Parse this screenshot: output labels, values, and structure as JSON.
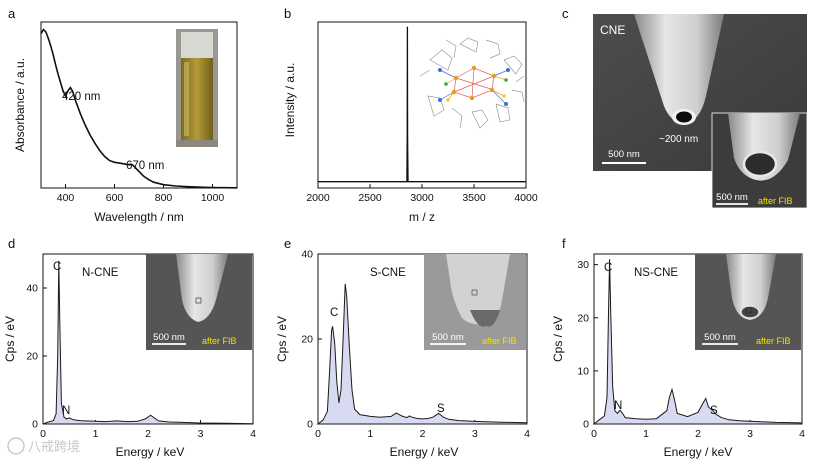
{
  "panel_letters": [
    "a",
    "b",
    "c",
    "d",
    "e",
    "f"
  ],
  "chart_data": [
    {
      "panel": "a",
      "type": "line",
      "xlabel": "Wavelength / nm",
      "ylabel": "Absorbance / a.u.",
      "xlim": [
        300,
        1100
      ],
      "xticks": [
        400,
        600,
        800,
        1000
      ],
      "x": [
        300,
        310,
        320,
        330,
        340,
        350,
        360,
        370,
        380,
        390,
        400,
        410,
        420,
        430,
        440,
        460,
        480,
        500,
        520,
        540,
        560,
        580,
        600,
        620,
        640,
        660,
        670,
        680,
        700,
        720,
        740,
        760,
        800,
        850,
        900,
        950,
        1000,
        1050,
        1100
      ],
      "y": [
        0.93,
        0.955,
        0.94,
        0.9,
        0.855,
        0.8,
        0.74,
        0.685,
        0.635,
        0.585,
        0.555,
        0.585,
        0.605,
        0.58,
        0.53,
        0.45,
        0.38,
        0.32,
        0.27,
        0.225,
        0.19,
        0.165,
        0.155,
        0.15,
        0.145,
        0.14,
        0.142,
        0.13,
        0.1,
        0.07,
        0.05,
        0.035,
        0.02,
        0.012,
        0.008,
        0.005,
        0.003,
        0.002,
        0.001
      ],
      "annotations": [
        "420 nm",
        "670 nm"
      ]
    },
    {
      "panel": "b",
      "type": "line",
      "xlabel": "m / z",
      "ylabel": "Intensity / a.u.",
      "xlim": [
        2000,
        4000
      ],
      "xticks": [
        2000,
        2500,
        3000,
        3500,
        4000
      ],
      "x": [
        2000,
        2855,
        2858,
        2860,
        2862,
        2865,
        4000
      ],
      "y": [
        0.02,
        0.02,
        0.3,
        1.0,
        0.3,
        0.02,
        0.02
      ]
    },
    {
      "panel": "d",
      "type": "area",
      "title": "N-CNE",
      "xlabel": "Energy / keV",
      "ylabel": "Cps / eV",
      "xlim": [
        0,
        4
      ],
      "ylim": [
        0,
        50
      ],
      "xticks": [
        0,
        1,
        2,
        3,
        4
      ],
      "yticks": [
        0,
        20,
        40
      ],
      "x": [
        0,
        0.1,
        0.2,
        0.25,
        0.28,
        0.3,
        0.32,
        0.35,
        0.4,
        0.45,
        0.5,
        0.55,
        0.6,
        0.7,
        0.8,
        1.0,
        1.2,
        1.4,
        1.5,
        1.6,
        1.8,
        1.95,
        2.05,
        2.12,
        2.2,
        2.4,
        2.6,
        2.8,
        3,
        3.5,
        4
      ],
      "y": [
        0,
        0.6,
        1,
        3,
        20,
        48,
        30,
        6,
        2,
        1.5,
        1.8,
        1.4,
        1.2,
        1,
        0.9,
        0.8,
        0.7,
        0.9,
        0.8,
        0.7,
        0.8,
        1.5,
        2.6,
        1.8,
        0.9,
        0.6,
        0.5,
        0.4,
        0.3,
        0.2,
        0.1
      ],
      "peak_labels": [
        "C",
        "N"
      ]
    },
    {
      "panel": "e",
      "type": "area",
      "title": "S-CNE",
      "xlabel": "Energy / keV",
      "ylabel": "Cps / eV",
      "xlim": [
        0,
        4
      ],
      "ylim": [
        0,
        40
      ],
      "xticks": [
        0,
        1,
        2,
        3,
        4
      ],
      "yticks": [
        0,
        20,
        40
      ],
      "x": [
        0,
        0.1,
        0.18,
        0.22,
        0.26,
        0.28,
        0.32,
        0.36,
        0.4,
        0.44,
        0.48,
        0.52,
        0.55,
        0.6,
        0.65,
        0.7,
        0.8,
        1.0,
        1.2,
        1.4,
        1.5,
        1.6,
        1.7,
        1.75,
        1.8,
        1.9,
        2.0,
        2.1,
        2.2,
        2.31,
        2.4,
        2.5,
        2.7,
        3,
        3.5,
        4
      ],
      "y": [
        0,
        1,
        3,
        12,
        22,
        23,
        19,
        10,
        5,
        8,
        20,
        33,
        30,
        18,
        8,
        3.5,
        2.2,
        1.8,
        1.6,
        1.8,
        2.6,
        1.9,
        1.5,
        1.9,
        1.6,
        1.3,
        1.2,
        1.3,
        1.6,
        2.5,
        1.6,
        1.1,
        0.8,
        0.6,
        0.4,
        0.3
      ],
      "peak_labels": [
        "C",
        "S"
      ]
    },
    {
      "panel": "f",
      "type": "area",
      "title": "NS-CNE",
      "xlabel": "Energy / keV",
      "ylabel": "Cps / eV",
      "xlim": [
        0,
        4
      ],
      "ylim": [
        0,
        32
      ],
      "xticks": [
        0,
        1,
        2,
        3,
        4
      ],
      "yticks": [
        0,
        10,
        20,
        30
      ],
      "x": [
        0,
        0.1,
        0.2,
        0.25,
        0.28,
        0.3,
        0.32,
        0.36,
        0.4,
        0.45,
        0.5,
        0.55,
        0.6,
        0.8,
        1.0,
        1.2,
        1.4,
        1.45,
        1.5,
        1.55,
        1.6,
        1.8,
        2.0,
        2.1,
        2.15,
        2.2,
        2.3,
        2.35,
        2.45,
        2.6,
        2.8,
        3,
        3.5,
        4
      ],
      "y": [
        0,
        0.8,
        1.5,
        5,
        22,
        31,
        22,
        7,
        2.5,
        2,
        2.6,
        2,
        1.2,
        1,
        0.9,
        1,
        2.5,
        5,
        6.5,
        4.5,
        2,
        1.4,
        2.2,
        4,
        4.8,
        3.2,
        2.4,
        1.8,
        1.2,
        0.8,
        0.6,
        0.5,
        0.3,
        0.2
      ],
      "peak_labels": [
        "C",
        "N",
        "S"
      ]
    }
  ],
  "sem": {
    "c_main": {
      "label": "CNE",
      "size": "~200 nm",
      "scale": "500 nm"
    },
    "c_inset": {
      "scale": "500 nm",
      "note": "after FIB"
    },
    "d_inset": {
      "scale": "500 nm",
      "note": "after FIB"
    },
    "e_inset": {
      "scale": "500 nm",
      "note": "after FIB"
    },
    "f_inset": {
      "scale": "500 nm",
      "note": "after FIB"
    }
  },
  "watermark": "八戒跨境",
  "colors": {
    "axis": "#111111",
    "fill": "#d7daf0",
    "line": "#1a1a1a",
    "note": "#f5e000"
  }
}
